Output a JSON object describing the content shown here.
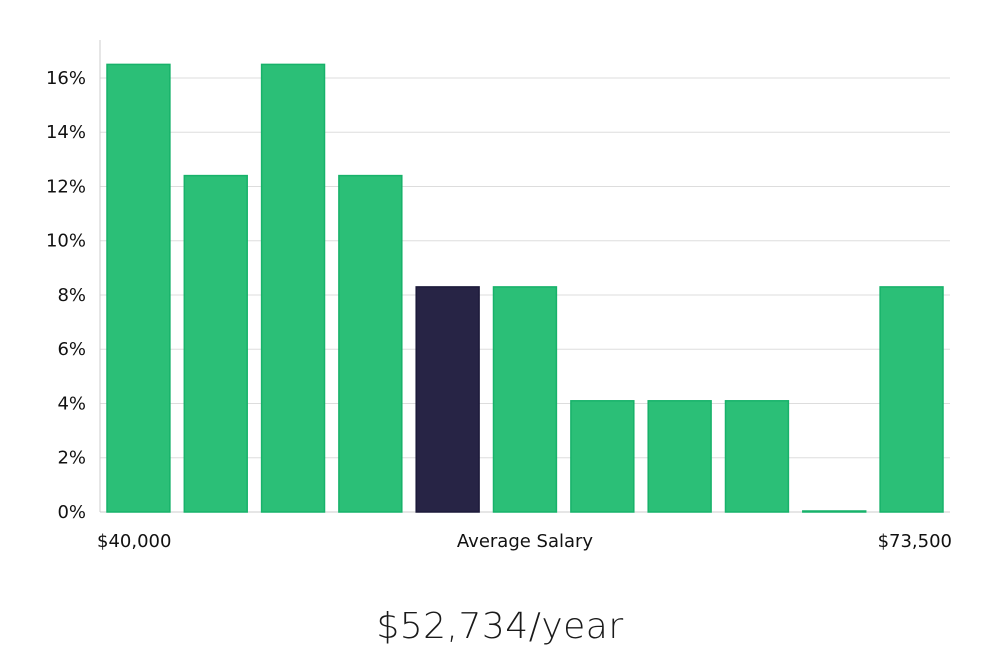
{
  "chart_data": {
    "type": "bar",
    "values": [
      16.5,
      12.4,
      16.5,
      12.4,
      8.3,
      8.3,
      4.1,
      4.1,
      4.1,
      0,
      8.3
    ],
    "highlight_index": 4,
    "ylim": [
      0,
      17.4
    ],
    "yticks": [
      "0%",
      "2%",
      "4%",
      "6%",
      "8%",
      "10%",
      "12%",
      "14%",
      "16%"
    ],
    "ytick_values": [
      0,
      2,
      4,
      6,
      8,
      10,
      12,
      14,
      16
    ],
    "x_min_label": "$40,000",
    "xlabel": "Average Salary",
    "x_max_label": "$73,500",
    "grid": true,
    "colors": {
      "bar": "#2bbf77",
      "bar_edge": "#17b26a",
      "highlight": "#272445",
      "grid": "#dddddd",
      "axis": "#cccccc"
    }
  },
  "summary": {
    "salary": "$52,734/year"
  }
}
